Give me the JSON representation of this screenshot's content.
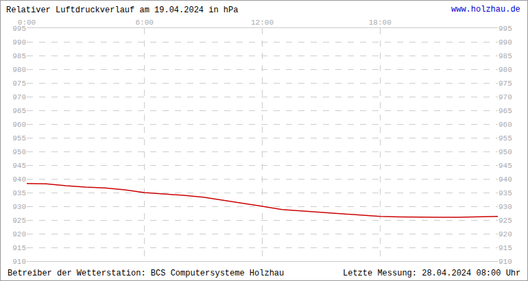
{
  "chart_data": {
    "type": "line",
    "title": "Relativer Luftdruckverlauf am 19.04.2024 in hPa",
    "annotations": [
      "www.holzhau.de",
      "Betreiber der Wetterstation: BCS Computersysteme Holzhau",
      "Letzte Messung: 28.04.2024 08:00 Uhr"
    ],
    "x": [
      0,
      1,
      2,
      3,
      4,
      5,
      6,
      7,
      8,
      9,
      10,
      11,
      12,
      13,
      14,
      15,
      16,
      17,
      18,
      19,
      20,
      21,
      22,
      23,
      24
    ],
    "values": [
      938.3,
      938.2,
      937.5,
      937.0,
      936.7,
      936.0,
      935.0,
      934.5,
      934.0,
      933.3,
      932.2,
      931.2,
      930.0,
      928.8,
      928.3,
      927.8,
      927.2,
      926.8,
      926.3,
      926.1,
      926.0,
      926.0,
      926.0,
      926.2,
      926.3
    ],
    "color": "#cc0000",
    "xlim": [
      0,
      24
    ],
    "xticks": [
      {
        "value": 0,
        "label": "0:00"
      },
      {
        "value": 6,
        "label": "6:00"
      },
      {
        "value": 12,
        "label": "12:00"
      },
      {
        "value": 18,
        "label": "18:00"
      }
    ],
    "ylim": [
      910,
      995
    ],
    "yticks": [
      910,
      915,
      920,
      925,
      930,
      935,
      940,
      945,
      950,
      955,
      960,
      965,
      970,
      975,
      980,
      985,
      990,
      995
    ],
    "grid": true
  }
}
